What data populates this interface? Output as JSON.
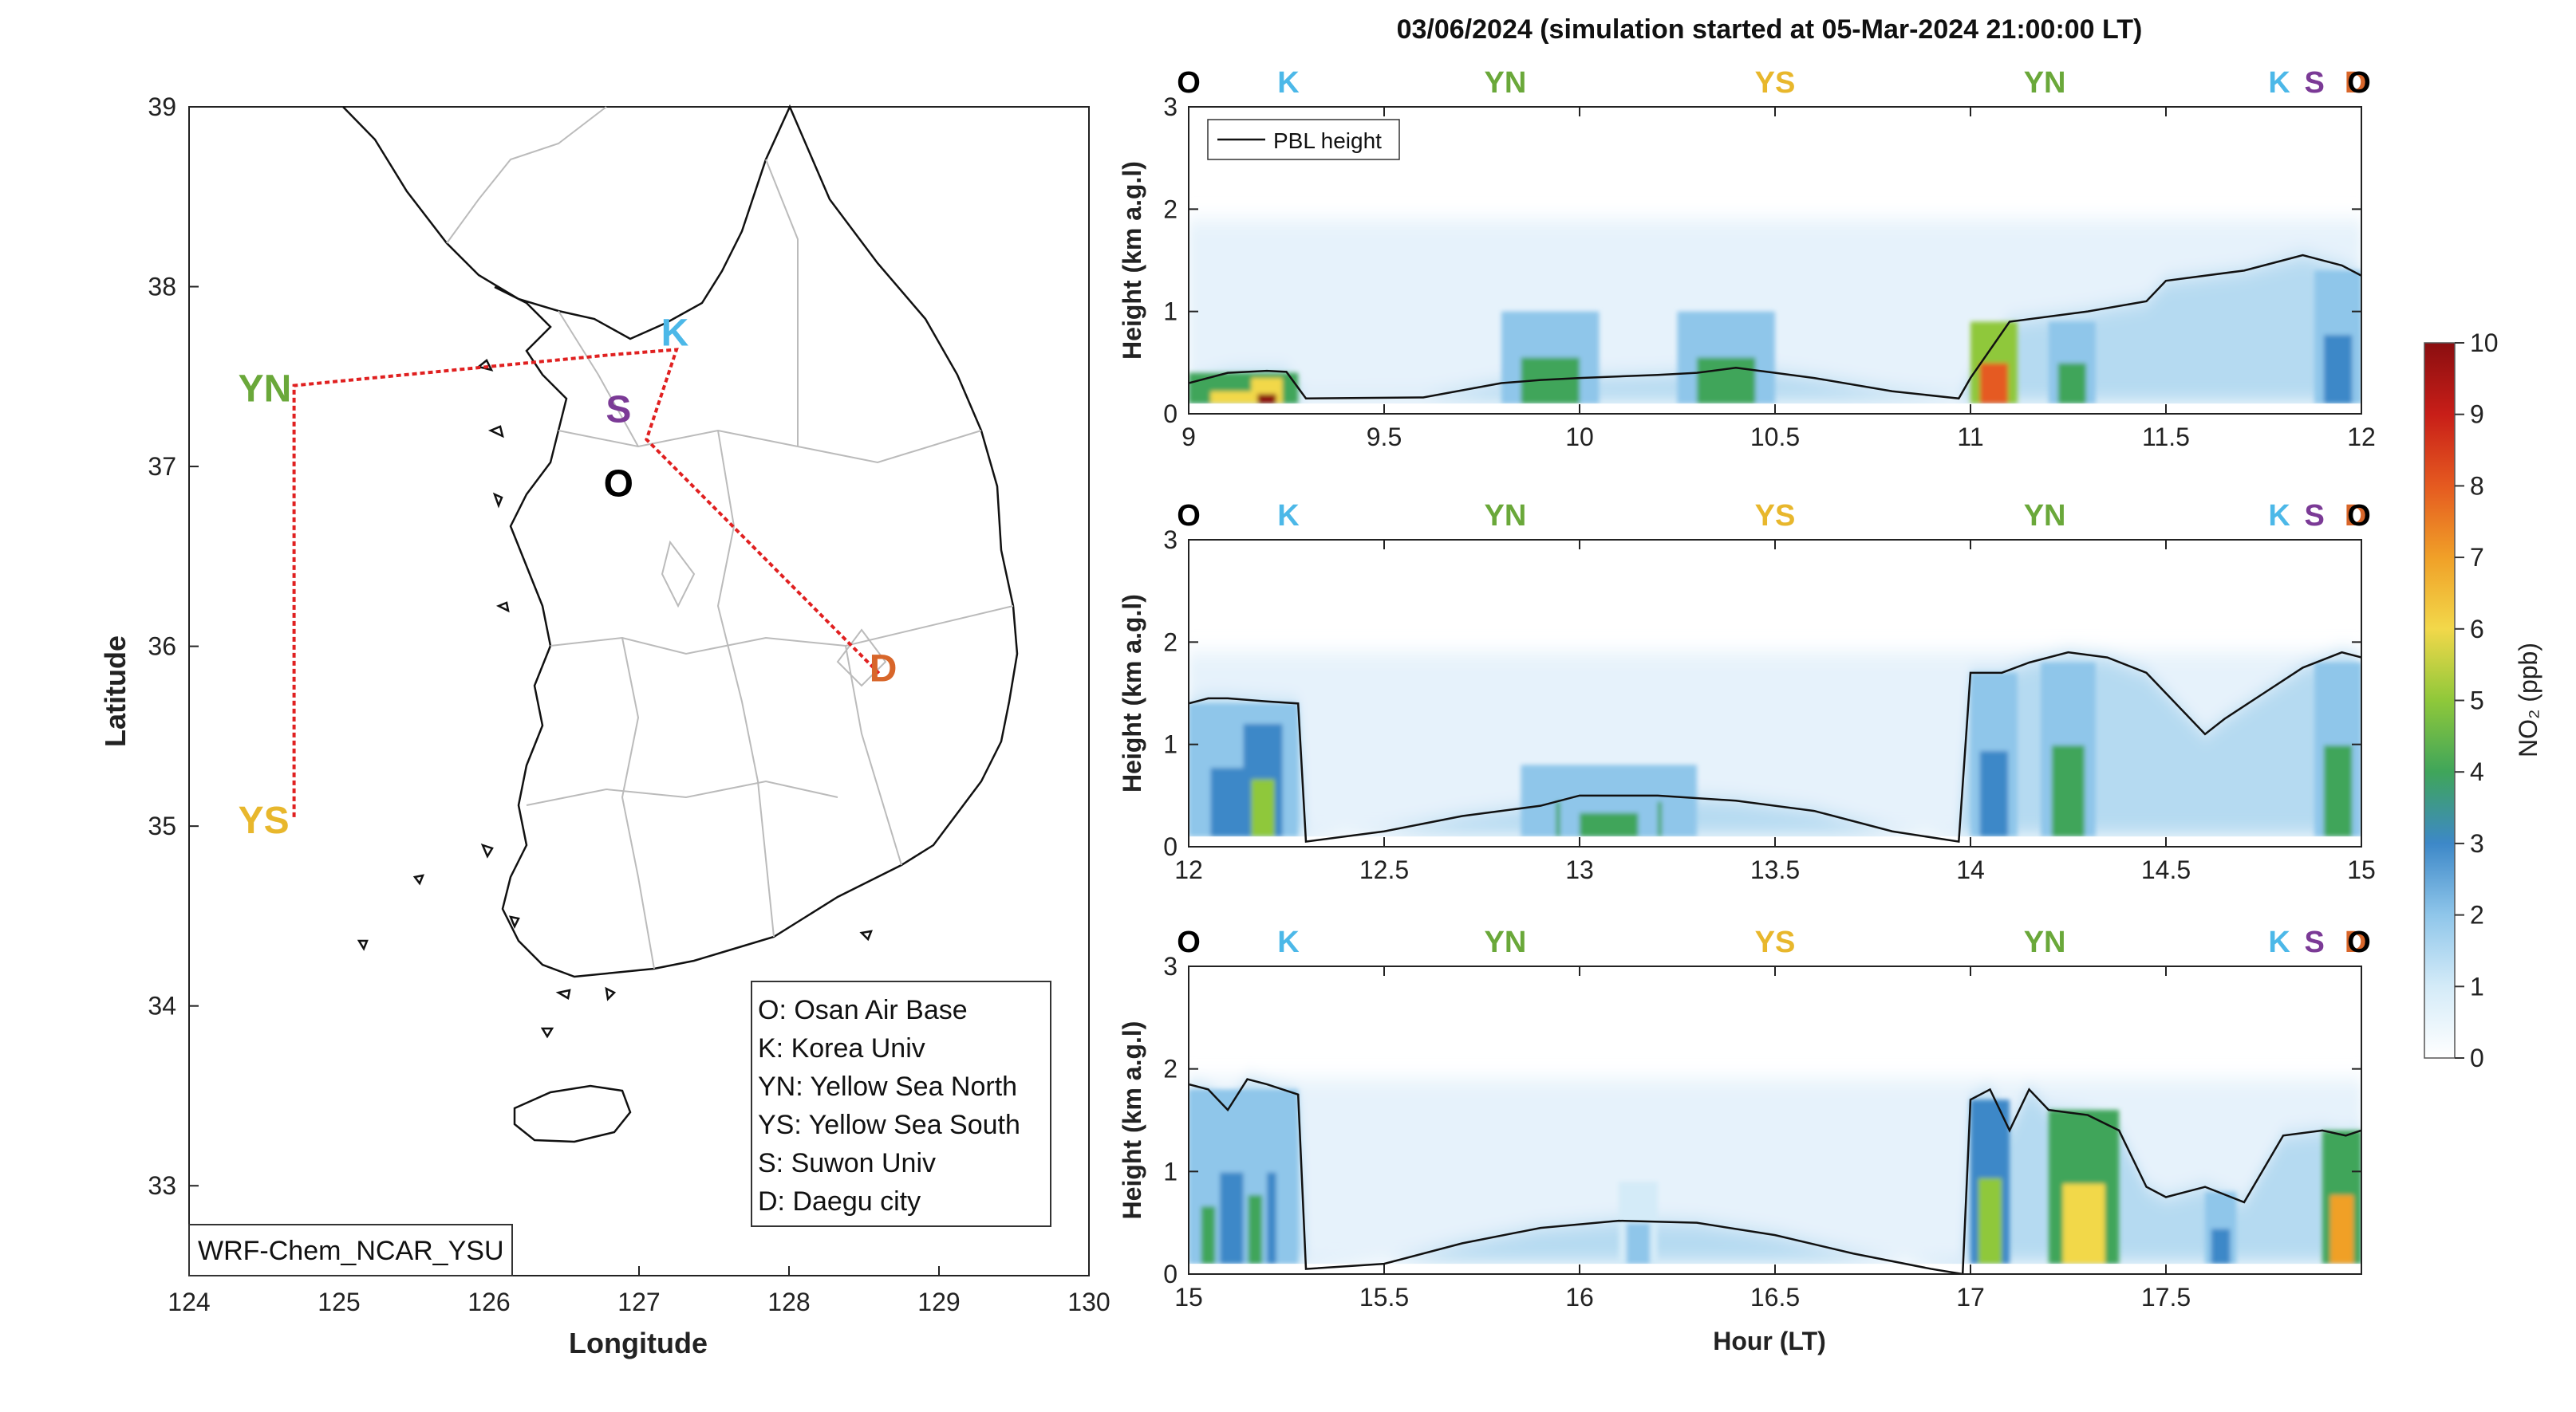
{
  "title": "03/06/2024 (simulation started at 05-Mar-2024 21:00:00 LT)",
  "model_label": "WRF-Chem_NCAR_YSU",
  "colors": {
    "O": "#000000",
    "K": "#4cb8e8",
    "YN": "#6aa83a",
    "YS": "#e8b72c",
    "S": "#7b3a96",
    "D": "#d8662a",
    "route": "#e02020"
  },
  "legend_box": [
    "O: Osan Air Base",
    "K: Korea Univ",
    "YN: Yellow Sea North",
    "YS: Yellow Sea South",
    "S: Suwon Univ",
    "D: Daegu city"
  ],
  "site_sequence": [
    "O",
    "K",
    "YN",
    "YS",
    "YN",
    "K",
    "S",
    "D",
    "O"
  ],
  "colorbar": {
    "label": "NO₂ (ppb)",
    "min": 0,
    "max": 10,
    "ticks": [
      "0",
      "1",
      "2",
      "3",
      "4",
      "5",
      "6",
      "7",
      "8",
      "9",
      "10"
    ]
  },
  "chart_data": [
    {
      "type": "map",
      "xlabel": "Longitude",
      "ylabel": "Latitude",
      "xlim": [
        124,
        130
      ],
      "ylim": [
        32.5,
        39
      ],
      "xticks": [
        "124",
        "125",
        "126",
        "127",
        "128",
        "129",
        "130"
      ],
      "yticks": [
        "33",
        "34",
        "35",
        "36",
        "37",
        "38",
        "39"
      ],
      "sites": [
        {
          "id": "YN",
          "lon": 124.7,
          "lat": 37.45
        },
        {
          "id": "YS",
          "lon": 124.7,
          "lat": 35.05
        },
        {
          "id": "K",
          "lon": 127.2,
          "lat": 37.65
        },
        {
          "id": "S",
          "lon": 126.97,
          "lat": 37.38
        },
        {
          "id": "O",
          "lon": 127.03,
          "lat": 37.1
        },
        {
          "id": "D",
          "lon": 128.6,
          "lat": 35.85
        }
      ],
      "route": [
        [
          124.7,
          35.05
        ],
        [
          124.7,
          37.45
        ],
        [
          126.8,
          37.62
        ],
        [
          127.25,
          37.65
        ],
        [
          127.05,
          37.15
        ],
        [
          128.6,
          35.85
        ]
      ]
    },
    {
      "type": "heatmap",
      "xlabel": "",
      "ylabel": "Height (km a.g.l)",
      "xlim": [
        9,
        12
      ],
      "ylim": [
        0,
        3
      ],
      "xticks": [
        "9",
        "9.5",
        "10",
        "10.5",
        "11",
        "11.5",
        "12"
      ],
      "yticks": [
        "0",
        "1",
        "2",
        "3"
      ],
      "series_name": "PBL height",
      "pbl": {
        "x": [
          9.0,
          9.05,
          9.1,
          9.2,
          9.25,
          9.3,
          9.6,
          9.8,
          9.9,
          10.0,
          10.2,
          10.3,
          10.4,
          10.5,
          10.6,
          10.8,
          10.97,
          11.0,
          11.1,
          11.3,
          11.45,
          11.5,
          11.7,
          11.8,
          11.85,
          11.95,
          12.0
        ],
        "y": [
          0.3,
          0.35,
          0.4,
          0.42,
          0.41,
          0.15,
          0.16,
          0.3,
          0.33,
          0.35,
          0.38,
          0.4,
          0.45,
          0.4,
          0.35,
          0.22,
          0.15,
          0.35,
          0.9,
          1.0,
          1.1,
          1.3,
          1.4,
          1.5,
          1.55,
          1.45,
          1.35
        ]
      },
      "plumes": [
        {
          "x0": 9.0,
          "x1": 9.28,
          "top": 0.4,
          "peak": 6
        },
        {
          "x0": 9.16,
          "x1": 9.24,
          "top": 0.35,
          "peak": 10
        },
        {
          "x0": 9.8,
          "x1": 10.05,
          "top": 1.0,
          "peak": 4
        },
        {
          "x0": 10.25,
          "x1": 10.5,
          "top": 1.0,
          "peak": 4
        },
        {
          "x0": 11.0,
          "x1": 11.12,
          "top": 0.9,
          "peak": 8
        },
        {
          "x0": 11.2,
          "x1": 11.32,
          "top": 0.9,
          "peak": 3.5
        },
        {
          "x0": 11.88,
          "x1": 12.0,
          "top": 1.4,
          "peak": 3
        }
      ]
    },
    {
      "type": "heatmap",
      "xlabel": "",
      "ylabel": "Height (km a.g.l)",
      "xlim": [
        12,
        15
      ],
      "ylim": [
        0,
        3
      ],
      "xticks": [
        "12",
        "12.5",
        "13",
        "13.5",
        "14",
        "14.5",
        "15"
      ],
      "yticks": [
        "0",
        "1",
        "2",
        "3"
      ],
      "series_name": "",
      "pbl": {
        "x": [
          12.0,
          12.05,
          12.1,
          12.2,
          12.28,
          12.3,
          12.5,
          12.7,
          12.9,
          13.0,
          13.2,
          13.4,
          13.6,
          13.8,
          13.97,
          14.0,
          14.08,
          14.15,
          14.25,
          14.35,
          14.45,
          14.55,
          14.6,
          14.65,
          14.75,
          14.85,
          14.95,
          15.0
        ],
        "y": [
          1.4,
          1.45,
          1.45,
          1.42,
          1.4,
          0.05,
          0.15,
          0.3,
          0.4,
          0.5,
          0.5,
          0.45,
          0.35,
          0.15,
          0.05,
          1.7,
          1.7,
          1.8,
          1.9,
          1.85,
          1.7,
          1.3,
          1.1,
          1.25,
          1.5,
          1.75,
          1.9,
          1.85
        ]
      },
      "plumes": [
        {
          "x0": 12.0,
          "x1": 12.28,
          "top": 1.4,
          "peak": 3
        },
        {
          "x0": 12.14,
          "x1": 12.24,
          "top": 1.2,
          "peak": 5
        },
        {
          "x0": 12.85,
          "x1": 13.3,
          "top": 0.8,
          "peak": 3.5
        },
        {
          "x0": 12.95,
          "x1": 13.2,
          "top": 0.6,
          "peak": 4
        },
        {
          "x0": 14.0,
          "x1": 14.12,
          "top": 1.7,
          "peak": 3
        },
        {
          "x0": 14.18,
          "x1": 14.32,
          "top": 1.8,
          "peak": 4
        },
        {
          "x0": 14.88,
          "x1": 15.0,
          "top": 1.8,
          "peak": 3.5
        }
      ]
    },
    {
      "type": "heatmap",
      "xlabel": "Hour (LT)",
      "ylabel": "Height (km a.g.l)",
      "xlim": [
        15,
        18
      ],
      "ylim": [
        0,
        3
      ],
      "xticks": [
        "15",
        "15.5",
        "16",
        "16.5",
        "17",
        "17.5"
      ],
      "yticks": [
        "0",
        "1",
        "2",
        "3"
      ],
      "series_name": "",
      "pbl": {
        "x": [
          15.0,
          15.05,
          15.1,
          15.15,
          15.2,
          15.28,
          15.3,
          15.5,
          15.7,
          15.9,
          16.1,
          16.3,
          16.5,
          16.7,
          16.9,
          16.98,
          17.0,
          17.05,
          17.1,
          17.15,
          17.2,
          17.3,
          17.38,
          17.45,
          17.5,
          17.55,
          17.6,
          17.7,
          17.8,
          17.9,
          17.96,
          18.0
        ],
        "y": [
          1.85,
          1.8,
          1.6,
          1.9,
          1.85,
          1.75,
          0.05,
          0.1,
          0.3,
          0.45,
          0.52,
          0.5,
          0.38,
          0.2,
          0.05,
          0.0,
          1.7,
          1.8,
          1.4,
          1.8,
          1.6,
          1.55,
          1.4,
          0.85,
          0.75,
          0.8,
          0.85,
          0.7,
          1.35,
          1.4,
          1.35,
          1.4
        ]
      },
      "plumes": [
        {
          "x0": 15.0,
          "x1": 15.28,
          "top": 1.8,
          "peak": 3
        },
        {
          "x0": 15.02,
          "x1": 15.08,
          "top": 1.2,
          "peak": 4
        },
        {
          "x0": 15.14,
          "x1": 15.2,
          "top": 1.4,
          "peak": 4
        },
        {
          "x0": 16.1,
          "x1": 16.2,
          "top": 0.9,
          "peak": 1.5
        },
        {
          "x0": 17.0,
          "x1": 17.1,
          "top": 1.7,
          "peak": 4.5
        },
        {
          "x0": 17.2,
          "x1": 17.38,
          "top": 1.6,
          "peak": 6
        },
        {
          "x0": 17.6,
          "x1": 17.68,
          "top": 0.8,
          "peak": 2.5
        },
        {
          "x0": 17.9,
          "x1": 18.0,
          "top": 1.4,
          "peak": 7
        }
      ]
    }
  ]
}
